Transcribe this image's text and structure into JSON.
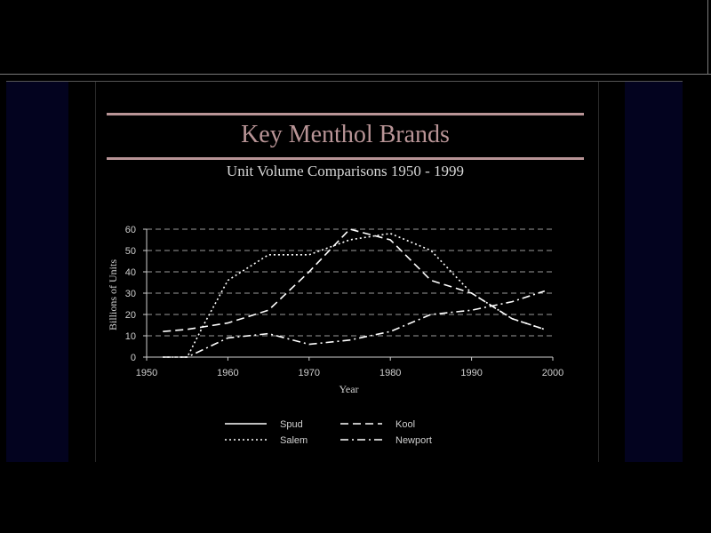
{
  "slide": {
    "title": "Key Menthol Brands",
    "subtitle": "Unit Volume Comparisons  1950 - 1999"
  },
  "chart_data": {
    "type": "line",
    "title": "",
    "xlabel": "Year",
    "ylabel": "Billions of Units",
    "xlim": [
      1950,
      2000
    ],
    "ylim": [
      0,
      60
    ],
    "xticks": [
      1950,
      1960,
      1970,
      1980,
      1990,
      2000
    ],
    "yticks": [
      0,
      10,
      20,
      30,
      40,
      50,
      60
    ],
    "grid": "horizontal dashed",
    "legend_position": "bottom",
    "series": [
      {
        "name": "Spud",
        "dash": "solid",
        "x": [],
        "y": []
      },
      {
        "name": "Salem",
        "dash": "dotted",
        "x": [
          1952,
          1955,
          1957,
          1960,
          1965,
          1970,
          1975,
          1980,
          1985,
          1990,
          1995,
          1999
        ],
        "y": [
          0,
          0,
          15,
          36,
          48,
          48,
          55,
          58,
          50,
          30,
          18,
          13
        ]
      },
      {
        "name": "Kool",
        "dash": "dashed",
        "x": [
          1952,
          1955,
          1960,
          1965,
          1970,
          1975,
          1980,
          1985,
          1990,
          1995,
          1999
        ],
        "y": [
          12,
          13,
          16,
          22,
          40,
          60,
          55,
          36,
          30,
          18,
          13
        ]
      },
      {
        "name": "Newport",
        "dash": "dashdot",
        "x": [
          1952,
          1955,
          1960,
          1965,
          1970,
          1975,
          1980,
          1985,
          1990,
          1995,
          1999
        ],
        "y": [
          0,
          0,
          9,
          11,
          6,
          8,
          12,
          20,
          22,
          26,
          31
        ]
      }
    ]
  }
}
